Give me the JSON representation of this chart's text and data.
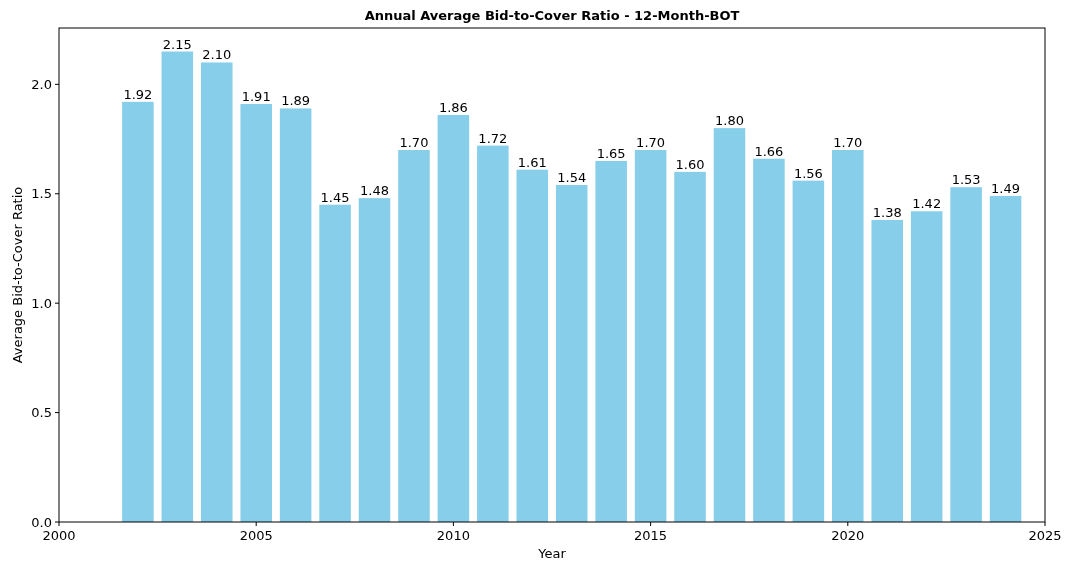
{
  "chart_data": {
    "type": "bar",
    "title": "Annual Average Bid-to-Cover Ratio - 12-Month-BOT",
    "xlabel": "Year",
    "ylabel": "Average Bid-to-Cover Ratio",
    "x": [
      2002,
      2003,
      2004,
      2005,
      2006,
      2007,
      2008,
      2009,
      2010,
      2011,
      2012,
      2013,
      2014,
      2015,
      2016,
      2017,
      2018,
      2019,
      2020,
      2021,
      2022,
      2023,
      2024
    ],
    "series": [
      {
        "color": "#87ceeb",
        "values": [
          1.92,
          2.15,
          2.1,
          1.91,
          1.89,
          1.45,
          1.48,
          1.7,
          1.86,
          1.72,
          1.61,
          1.54,
          1.65,
          1.7,
          1.6,
          1.8,
          1.66,
          1.56,
          1.7,
          1.38,
          1.42,
          1.53,
          1.49
        ],
        "value_labels": [
          "1.92",
          "2.15",
          "2.10",
          "1.91",
          "1.89",
          "1.45",
          "1.48",
          "1.70",
          "1.86",
          "1.72",
          "1.61",
          "1.54",
          "1.65",
          "1.70",
          "1.60",
          "1.80",
          "1.66",
          "1.56",
          "1.70",
          "1.38",
          "1.42",
          "1.53",
          "1.49"
        ]
      }
    ],
    "xlim": [
      2000,
      2025
    ],
    "xticks": [
      2000,
      2005,
      2010,
      2015,
      2020,
      2025
    ],
    "ylim": [
      0,
      2.2575
    ],
    "yticks": [
      {
        "value": 0,
        "label": "0.0"
      },
      {
        "value": 0.5,
        "label": "0.5"
      },
      {
        "value": 1,
        "label": "1.0"
      },
      {
        "value": 1.5,
        "label": "1.5"
      },
      {
        "value": 2,
        "label": "2.0"
      }
    ],
    "grid": false
  }
}
